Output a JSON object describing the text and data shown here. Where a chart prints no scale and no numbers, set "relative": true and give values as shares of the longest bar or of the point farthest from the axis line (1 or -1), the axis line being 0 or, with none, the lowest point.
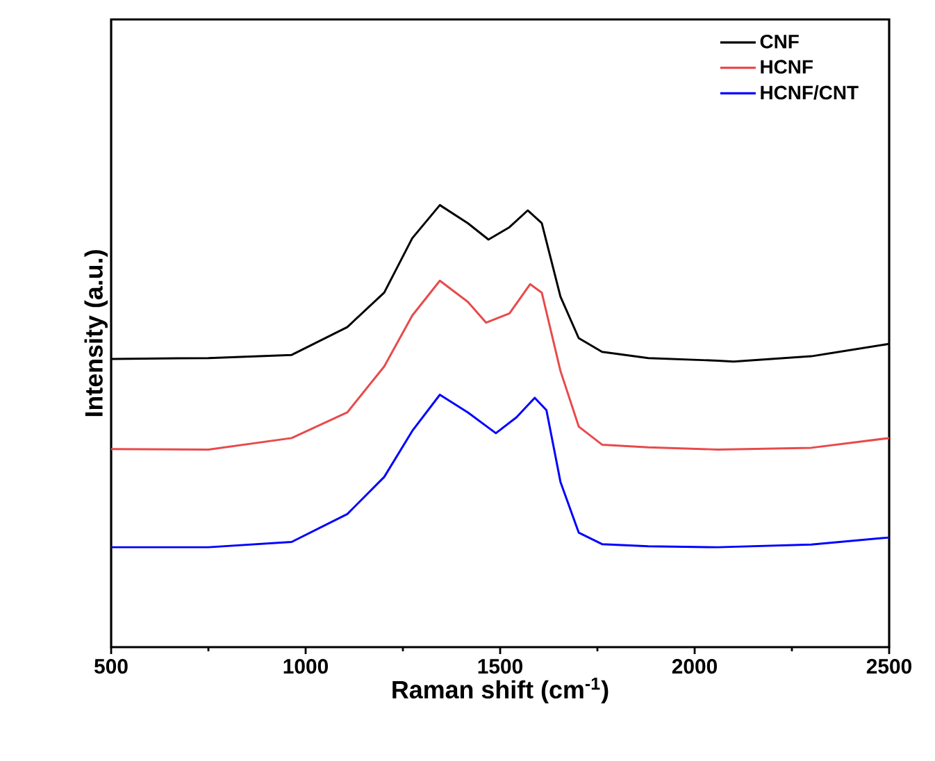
{
  "chart_data": {
    "type": "line",
    "relative": true,
    "xlabel": "Raman shift (cm$^{-1}$)",
    "ylabel": "Intensity (a.u.)",
    "xlim": [
      500,
      2500
    ],
    "xticks": [
      500,
      1000,
      1500,
      2000,
      2500
    ],
    "legend": "top right",
    "marker": "none",
    "line_style": "solid",
    "grid": false,
    "tick_labels": "x",
    "series": [
      {
        "name": "CNF",
        "color": "#000000",
        "x": [
          500,
          750,
          964,
          1107,
          1202,
          1274,
          1345,
          1417,
          1470,
          1524,
          1571,
          1607,
          1655,
          1702,
          1762,
          1881,
          2060,
          2100,
          2300,
          2500
        ],
        "values": [
          0.652,
          0.654,
          0.661,
          0.724,
          0.802,
          0.925,
          1.0,
          0.959,
          0.922,
          0.95,
          0.988,
          0.959,
          0.793,
          0.699,
          0.668,
          0.654,
          0.648,
          0.646,
          0.658,
          0.686
        ]
      },
      {
        "name": "HCNF",
        "color": "#e84a4a",
        "x": [
          500,
          750,
          964,
          1107,
          1202,
          1274,
          1345,
          1417,
          1464,
          1524,
          1577,
          1607,
          1655,
          1702,
          1762,
          1881,
          2060,
          2300,
          2500
        ],
        "values": [
          0.448,
          0.447,
          0.473,
          0.531,
          0.635,
          0.75,
          0.829,
          0.781,
          0.734,
          0.755,
          0.821,
          0.802,
          0.625,
          0.499,
          0.458,
          0.452,
          0.447,
          0.451,
          0.473
        ]
      },
      {
        "name": "HCNF/CNT",
        "color": "#0000ff",
        "x": [
          500,
          750,
          964,
          1107,
          1202,
          1274,
          1345,
          1417,
          1489,
          1542,
          1589,
          1619,
          1655,
          1702,
          1762,
          1881,
          2060,
          2300,
          2500
        ],
        "values": [
          0.226,
          0.226,
          0.238,
          0.301,
          0.385,
          0.489,
          0.571,
          0.531,
          0.484,
          0.52,
          0.564,
          0.536,
          0.374,
          0.259,
          0.233,
          0.228,
          0.226,
          0.232,
          0.248
        ]
      }
    ]
  }
}
